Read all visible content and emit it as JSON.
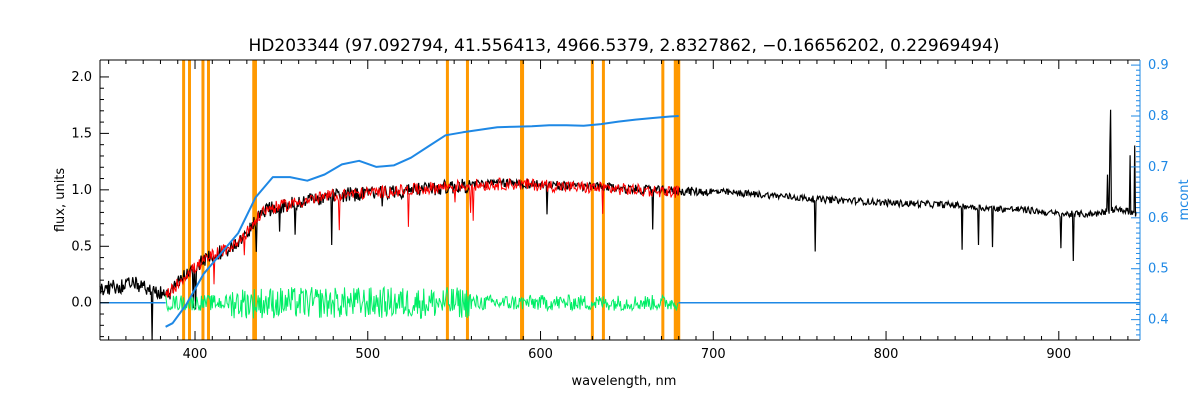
{
  "chart_data": {
    "type": "line",
    "title": "HD203344   (97.092794, 41.556413, 4966.5379, 2.8327862, −0.16656202, 0.22969494)",
    "xlabel": "wavelength, nm",
    "ylabel": "flux, units",
    "y2label": "mcont",
    "xlim": [
      345,
      947
    ],
    "ylim": [
      -0.33,
      2.15
    ],
    "y2lim": [
      0.36,
      0.91
    ],
    "x_ticks": [
      "400",
      "500",
      "600",
      "700",
      "800",
      "900"
    ],
    "y_ticks": [
      "0.0",
      "0.5",
      "1.0",
      "1.5",
      "2.0"
    ],
    "y2_ticks": [
      "0.4",
      "0.5",
      "0.6",
      "0.7",
      "0.8",
      "0.9"
    ],
    "grid": false,
    "colors": {
      "observed": "#000000",
      "model": "#ff0000",
      "residual": "#00ee66",
      "continuum": "#1e88e5",
      "mask": "#ff9900",
      "axis_right": "#1e88e5"
    },
    "masked_lines_nm": [
      393.4,
      396.8,
      404.6,
      407.8,
      434.0,
      435.0,
      546.1,
      557.7,
      589.0,
      589.6,
      630.0,
      636.4,
      670.8,
      678.0,
      679.0,
      680.0
    ],
    "continuum_mcont": {
      "x": [
        383,
        387,
        395,
        405,
        415,
        425,
        435,
        445,
        455,
        465,
        475,
        485,
        495,
        505,
        515,
        525,
        535,
        545,
        555,
        565,
        575,
        585,
        595,
        605,
        615,
        625,
        635,
        645,
        655,
        665,
        675,
        680
      ],
      "y": [
        0.386,
        0.393,
        0.43,
        0.49,
        0.53,
        0.57,
        0.64,
        0.68,
        0.68,
        0.673,
        0.685,
        0.705,
        0.712,
        0.7,
        0.703,
        0.718,
        0.74,
        0.762,
        0.768,
        0.773,
        0.778,
        0.779,
        0.78,
        0.782,
        0.782,
        0.781,
        0.784,
        0.789,
        0.793,
        0.796,
        0.799,
        0.8
      ]
    },
    "observed_envelope": {
      "x": [
        345,
        365,
        380,
        385,
        395,
        410,
        425,
        440,
        460,
        480,
        500,
        520,
        540,
        560,
        580,
        600,
        620,
        640,
        660,
        680,
        700,
        720,
        740,
        760,
        780,
        800,
        820,
        840,
        860,
        880,
        900,
        920,
        935,
        945
      ],
      "y": [
        0.15,
        0.2,
        0.12,
        0.1,
        0.3,
        0.45,
        0.55,
        0.85,
        0.92,
        0.98,
        1.0,
        1.02,
        1.05,
        1.07,
        1.08,
        1.07,
        1.05,
        1.04,
        1.02,
        1.01,
        1.0,
        0.98,
        0.96,
        0.93,
        0.92,
        0.9,
        0.89,
        0.88,
        0.85,
        0.84,
        0.8,
        0.8,
        0.85,
        0.8
      ]
    },
    "model_envelope": {
      "x": [
        383,
        395,
        410,
        425,
        440,
        460,
        480,
        500,
        520,
        540,
        560,
        580,
        600,
        620,
        640,
        660,
        680
      ],
      "y": [
        0.08,
        0.28,
        0.45,
        0.55,
        0.85,
        0.92,
        0.98,
        1.0,
        1.02,
        1.05,
        1.07,
        1.08,
        1.07,
        1.05,
        1.04,
        1.02,
        1.01
      ]
    },
    "residual_level": 0.0,
    "residual_range": [
      383,
      680
    ]
  }
}
